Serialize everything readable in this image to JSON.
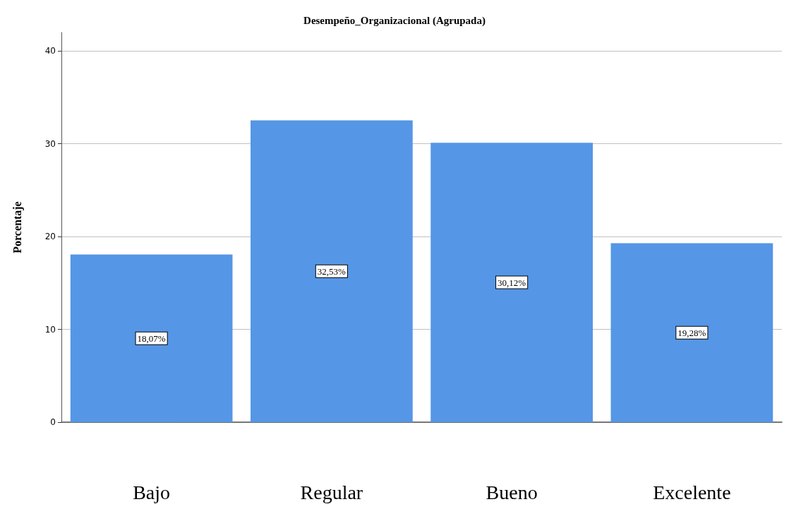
{
  "chart_data": {
    "type": "bar",
    "title": "Desempeño_Organizacional (Agrupada)",
    "ylabel": "Porcentaje",
    "categories": [
      "Bajo",
      "Regular",
      "Bueno",
      "Excelente"
    ],
    "values": [
      18.07,
      32.53,
      30.12,
      19.28
    ],
    "value_labels": [
      "18,07%",
      "32,53%",
      "30,12%",
      "19,28%"
    ],
    "color": "#5596e6",
    "ylim": [
      0,
      42
    ],
    "yticks": [
      0,
      10,
      20,
      30,
      40
    ],
    "grid": "y"
  }
}
